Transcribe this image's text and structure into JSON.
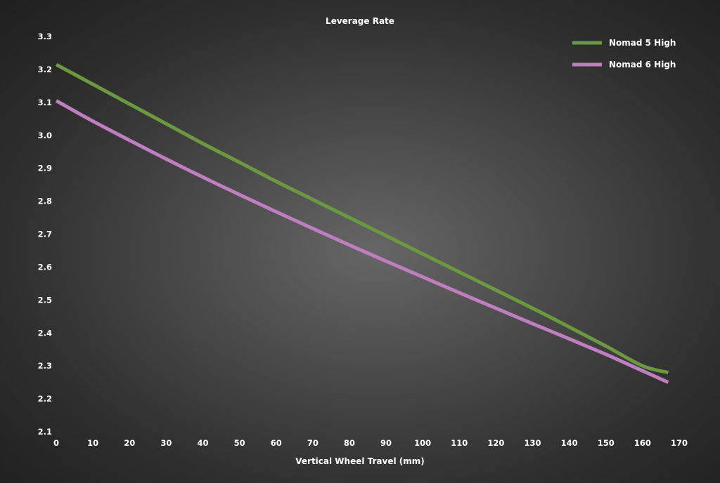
{
  "chart_data": {
    "type": "line",
    "title": "Leverage Rate",
    "xlabel": "Vertical Wheel Travel (mm)",
    "ylabel": "",
    "xlim": [
      0,
      170
    ],
    "ylim": [
      2.1,
      3.3
    ],
    "x_ticks": [
      0,
      10,
      20,
      30,
      40,
      50,
      60,
      70,
      80,
      90,
      100,
      110,
      120,
      130,
      140,
      150,
      160,
      170
    ],
    "y_ticks": [
      "2.1",
      "2.2",
      "2.3",
      "2.4",
      "2.5",
      "2.6",
      "2.7",
      "2.8",
      "2.9",
      "3.0",
      "3.1",
      "3.2",
      "3.3"
    ],
    "grid": false,
    "legend_position": "top-right",
    "series": [
      {
        "name": "Nomad 5 High",
        "color": "#6a9a3e",
        "x": [
          0,
          10,
          20,
          30,
          40,
          50,
          60,
          70,
          80,
          90,
          100,
          110,
          120,
          130,
          140,
          150,
          160,
          167
        ],
        "y": [
          3.215,
          3.155,
          3.095,
          3.035,
          2.975,
          2.918,
          2.86,
          2.805,
          2.75,
          2.695,
          2.64,
          2.585,
          2.53,
          2.475,
          2.418,
          2.36,
          2.3,
          2.28
        ]
      },
      {
        "name": "Nomad 6 High",
        "color": "#c07ec0",
        "x": [
          0,
          10,
          20,
          30,
          40,
          50,
          60,
          70,
          80,
          90,
          100,
          110,
          120,
          130,
          140,
          150,
          160,
          167
        ],
        "y": [
          3.105,
          3.043,
          2.985,
          2.928,
          2.873,
          2.82,
          2.768,
          2.717,
          2.667,
          2.618,
          2.57,
          2.522,
          2.475,
          2.428,
          2.382,
          2.335,
          2.285,
          2.25
        ]
      }
    ]
  }
}
